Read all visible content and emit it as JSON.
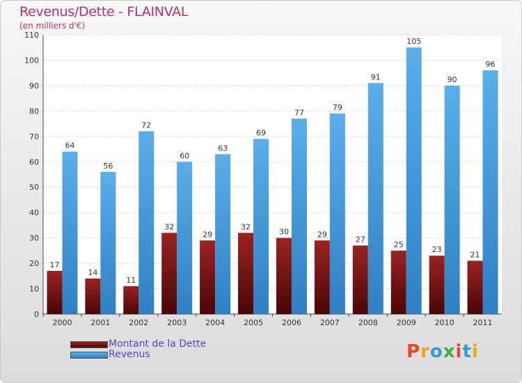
{
  "header": {
    "title": "Revenus/Dette - FLAINVAL",
    "subtitle": "(en milliers d'€)"
  },
  "chart_data": {
    "type": "bar",
    "categories": [
      "2000",
      "2001",
      "2002",
      "2003",
      "2004",
      "2005",
      "2006",
      "2007",
      "2008",
      "2009",
      "2010",
      "2011"
    ],
    "series": [
      {
        "name": "Montant de la Dette",
        "values": [
          17,
          14,
          11,
          32,
          29,
          32,
          30,
          29,
          27,
          25,
          23,
          21
        ],
        "color": "#8b1a1a"
      },
      {
        "name": "Revenus",
        "values": [
          64,
          56,
          72,
          60,
          63,
          69,
          77,
          79,
          91,
          105,
          90,
          96
        ],
        "color": "#4a9fe0"
      }
    ],
    "ylim": [
      0,
      110
    ],
    "yticks": [
      "0",
      "10",
      "20",
      "30",
      "40",
      "50",
      "60",
      "70",
      "80",
      "90",
      "100",
      "110"
    ],
    "grid": true,
    "legend_position": "bottom-left"
  },
  "logo": {
    "letters": [
      "P",
      "r",
      "o",
      "x",
      "i",
      "t",
      "i"
    ],
    "colors": [
      "#e8452c",
      "#f2a31b",
      "#2d9fd8",
      "#3fae49",
      "#e8452c",
      "#2d9fd8",
      "#f2a31b"
    ]
  }
}
